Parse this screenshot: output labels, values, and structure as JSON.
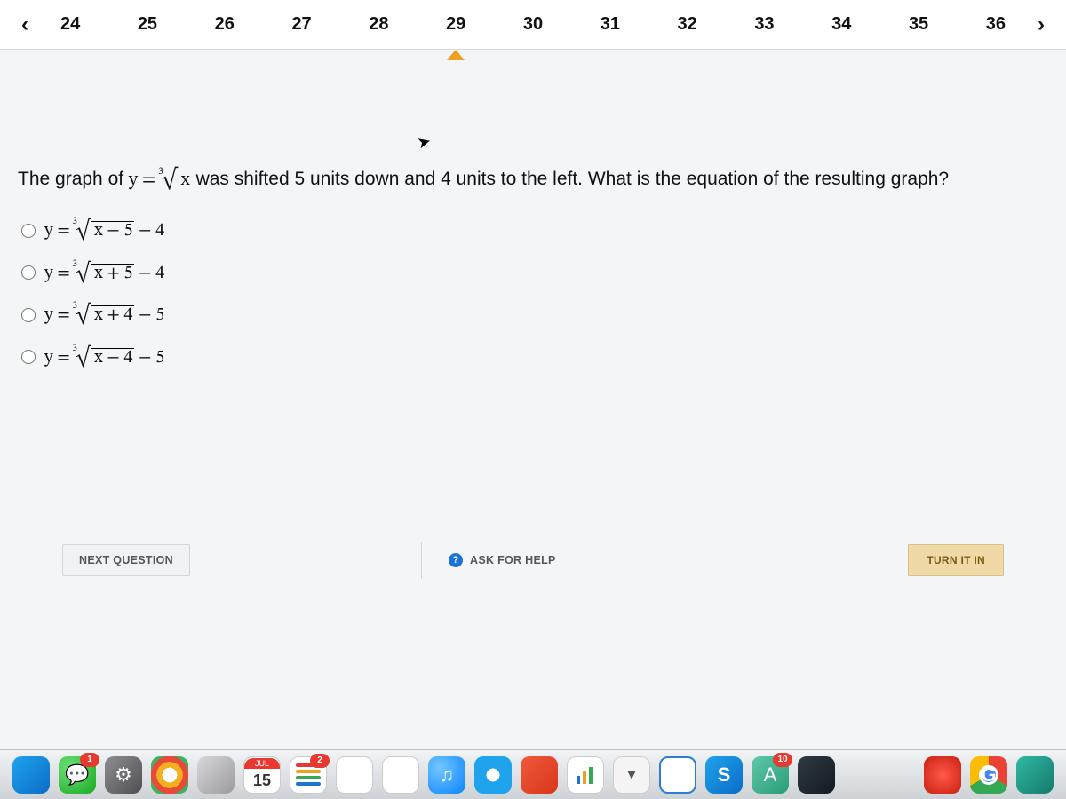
{
  "nav": {
    "prev_label": "‹",
    "next_label": "›",
    "numbers": [
      "24",
      "25",
      "26",
      "27",
      "28",
      "29",
      "30",
      "31",
      "32",
      "33",
      "34",
      "35",
      "36"
    ],
    "current_index": 5
  },
  "question": {
    "prefix": "The graph of ",
    "func_lhs": "y = ",
    "root_index": "3",
    "radicand": "x",
    "suffix": " was shifted 5 units down and 4 units to the left. What is the equation of the resulting graph?"
  },
  "options": [
    {
      "lhs": "y = ",
      "root_index": "3",
      "radicand": "x − 5",
      "after": " − 4"
    },
    {
      "lhs": "y = ",
      "root_index": "3",
      "radicand": "x + 5",
      "after": " − 4"
    },
    {
      "lhs": "y = ",
      "root_index": "3",
      "radicand": "x + 4",
      "after": " − 5"
    },
    {
      "lhs": "y = ",
      "root_index": "3",
      "radicand": "x − 4",
      "after": " − 5"
    }
  ],
  "actions": {
    "next_question": "NEXT QUESTION",
    "ask_for_help": "ASK FOR HELP",
    "turn_it_in": "TURN IT IN"
  },
  "dock": {
    "calendar_month": "JUL",
    "calendar_day": "15",
    "messages_badge": "1",
    "reminders_badge": "2",
    "acrobat_badge": "10",
    "skype_letter": "S",
    "chrome_letter": "G",
    "acrobat_letter": "A"
  },
  "colors": {
    "page_bg": "#f3f5f7",
    "nav_bg": "#ffffff",
    "pointer": "#f0a020",
    "turnin_bg": "#efd9a6",
    "turnin_text": "#7a5a12",
    "ask_bubble": "#1d72d2"
  }
}
